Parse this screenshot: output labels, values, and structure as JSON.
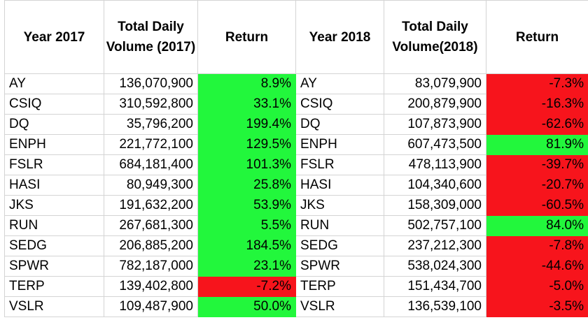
{
  "headers": {
    "year_2017": "Year 2017",
    "volume_2017": "Total Daily Volume (2017)",
    "return_2017": "Return",
    "year_2018": "Year 2018",
    "volume_2018": "Total Daily Volume(2018)",
    "return_2018": "Return"
  },
  "colors": {
    "positive": "#22f73c",
    "negative": "#f7141c"
  },
  "rows": [
    {
      "ticker_2017": "AY",
      "volume_2017": "136,070,900",
      "return_2017": "8.9%",
      "ticker_2018": "AY",
      "volume_2018": "83,079,900",
      "return_2018": "-7.3%"
    },
    {
      "ticker_2017": "CSIQ",
      "volume_2017": "310,592,800",
      "return_2017": "33.1%",
      "ticker_2018": "CSIQ",
      "volume_2018": "200,879,900",
      "return_2018": "-16.3%"
    },
    {
      "ticker_2017": "DQ",
      "volume_2017": "35,796,200",
      "return_2017": "199.4%",
      "ticker_2018": "DQ",
      "volume_2018": "107,873,900",
      "return_2018": "-62.6%"
    },
    {
      "ticker_2017": "ENPH",
      "volume_2017": "221,772,100",
      "return_2017": "129.5%",
      "ticker_2018": "ENPH",
      "volume_2018": "607,473,500",
      "return_2018": "81.9%"
    },
    {
      "ticker_2017": "FSLR",
      "volume_2017": "684,181,400",
      "return_2017": "101.3%",
      "ticker_2018": "FSLR",
      "volume_2018": "478,113,900",
      "return_2018": "-39.7%"
    },
    {
      "ticker_2017": "HASI",
      "volume_2017": "80,949,300",
      "return_2017": "25.8%",
      "ticker_2018": "HASI",
      "volume_2018": "104,340,600",
      "return_2018": "-20.7%"
    },
    {
      "ticker_2017": "JKS",
      "volume_2017": "191,632,200",
      "return_2017": "53.9%",
      "ticker_2018": "JKS",
      "volume_2018": "158,309,000",
      "return_2018": "-60.5%"
    },
    {
      "ticker_2017": "RUN",
      "volume_2017": "267,681,300",
      "return_2017": "5.5%",
      "ticker_2018": "RUN",
      "volume_2018": "502,757,100",
      "return_2018": "84.0%"
    },
    {
      "ticker_2017": "SEDG",
      "volume_2017": "206,885,200",
      "return_2017": "184.5%",
      "ticker_2018": "SEDG",
      "volume_2018": "237,212,300",
      "return_2018": "-7.8%"
    },
    {
      "ticker_2017": "SPWR",
      "volume_2017": "782,187,000",
      "return_2017": "23.1%",
      "ticker_2018": "SPWR",
      "volume_2018": "538,024,300",
      "return_2018": "-44.6%"
    },
    {
      "ticker_2017": "TERP",
      "volume_2017": "139,402,800",
      "return_2017": "-7.2%",
      "ticker_2018": "TERP",
      "volume_2018": "151,434,700",
      "return_2018": "-5.0%"
    },
    {
      "ticker_2017": "VSLR",
      "volume_2017": "109,487,900",
      "return_2017": "50.0%",
      "ticker_2018": "VSLR",
      "volume_2018": "136,539,100",
      "return_2018": "-3.5%"
    }
  ]
}
